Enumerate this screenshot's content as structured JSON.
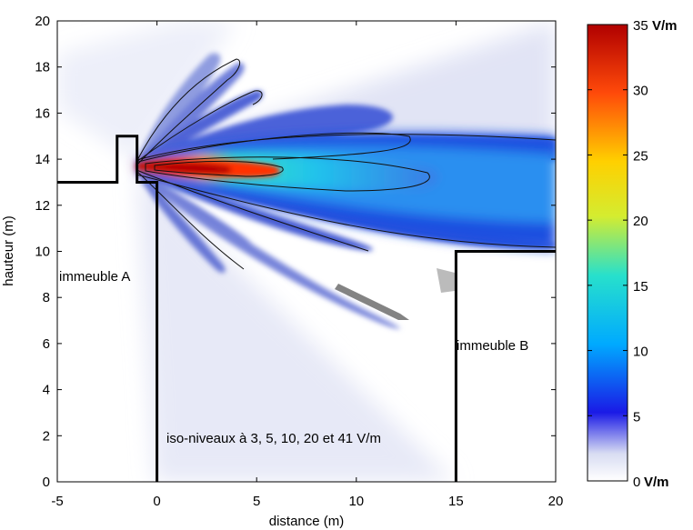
{
  "chart_data": {
    "type": "heatmap",
    "title": "",
    "xlabel": "distance (m)",
    "ylabel": "hauteur (m)",
    "xlim": [
      -5,
      20
    ],
    "ylim": [
      0,
      20
    ],
    "x_ticks": [
      -5,
      0,
      5,
      10,
      15,
      20
    ],
    "y_ticks": [
      0,
      2,
      4,
      6,
      8,
      10,
      12,
      14,
      16,
      18,
      20
    ],
    "colorbar": {
      "min": 0,
      "max": 35,
      "unit": "V/m",
      "ticks": [
        0,
        5,
        10,
        15,
        20,
        25,
        30,
        35
      ],
      "colormap": "jet",
      "colors": [
        "#ffffff",
        "#d8dcf2",
        "#1a1ae6",
        "#00aaff",
        "#27e0cc",
        "#d4ec30",
        "#ffd000",
        "#ff4a0a",
        "#b00000"
      ]
    },
    "iso_levels": [
      3,
      5,
      10,
      20,
      41
    ],
    "annotations": {
      "building_a": "immeuble A",
      "building_b": "immeuble B",
      "iso_note": "iso-niveaux à 3, 5, 10, 20 et 41 V/m"
    },
    "buildings": [
      {
        "name": "immeuble A",
        "outline": [
          [
            -5,
            13
          ],
          [
            -2,
            13
          ],
          [
            -2,
            15
          ],
          [
            -1,
            15
          ],
          [
            -1,
            13
          ],
          [
            0,
            13
          ],
          [
            0,
            0
          ]
        ]
      },
      {
        "name": "immeuble B",
        "outline": [
          [
            15,
            0
          ],
          [
            15,
            10
          ],
          [
            20,
            10
          ]
        ]
      }
    ],
    "source": {
      "x": -0.9,
      "y": 13.8
    },
    "main_lobe": {
      "peak_value": 35,
      "direction_y": 13.5,
      "peak_x": 2.5
    }
  }
}
